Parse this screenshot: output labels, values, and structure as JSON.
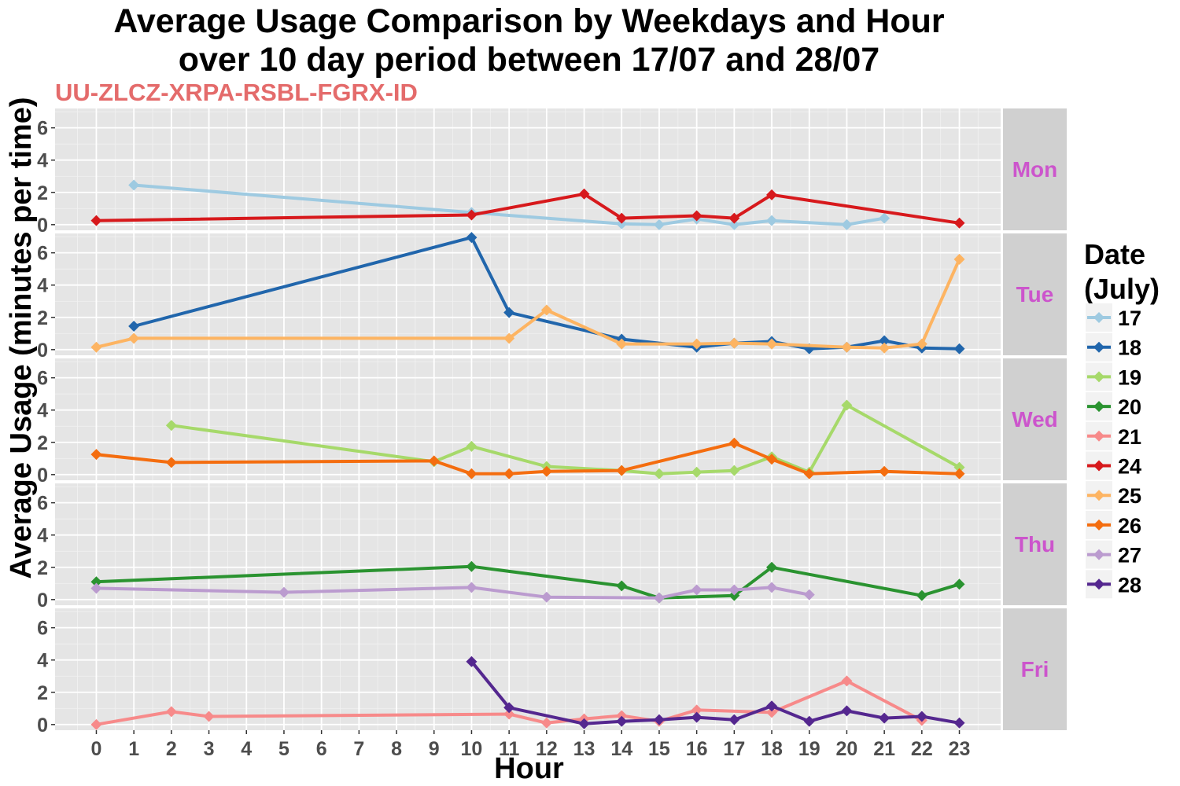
{
  "chart_data": {
    "type": "line",
    "title": "Average Usage Comparison by Weekdays and Hour",
    "title_line2": "over 10 day period between 17/07 and 28/07",
    "subtitle": "UU-ZLCZ-XRPA-RSBL-FGRX-ID",
    "xlabel": "Hour",
    "ylabel": "Average Usage (minutes per time)",
    "x_ticks": [
      0,
      1,
      2,
      3,
      4,
      5,
      6,
      7,
      8,
      9,
      10,
      11,
      12,
      13,
      14,
      15,
      16,
      17,
      18,
      19,
      20,
      21,
      22,
      23
    ],
    "y_ticks": [
      0,
      2,
      4,
      6
    ],
    "xlim": [
      -1.1,
      24.1
    ],
    "ylim": [
      -0.35,
      7.2
    ],
    "grid": true,
    "legend": {
      "title_line1": "Date",
      "title_line2": "(July)",
      "position": "right"
    },
    "panels": [
      {
        "label": "Mon",
        "series": [
          {
            "name": "17",
            "color": "#9ecae1",
            "x": [
              1,
              10,
              14,
              15,
              16,
              17,
              18,
              20,
              21
            ],
            "y": [
              2.45,
              0.75,
              0.05,
              0.0,
              0.35,
              0.0,
              0.25,
              0.0,
              0.4
            ]
          },
          {
            "name": "24",
            "color": "#d7191c",
            "x": [
              0,
              10,
              13,
              14,
              16,
              17,
              18,
              23
            ],
            "y": [
              0.25,
              0.6,
              1.9,
              0.4,
              0.55,
              0.4,
              1.85,
              0.1
            ]
          }
        ]
      },
      {
        "label": "Tue",
        "series": [
          {
            "name": "18",
            "color": "#2166ac",
            "x": [
              1,
              10,
              11,
              14,
              16,
              17,
              18,
              19,
              20,
              21,
              22,
              23
            ],
            "y": [
              1.45,
              6.95,
              2.3,
              0.65,
              0.15,
              0.4,
              0.5,
              0.05,
              0.15,
              0.55,
              0.1,
              0.05
            ]
          },
          {
            "name": "25",
            "color": "#fdb462",
            "x": [
              0,
              1,
              11,
              12,
              14,
              16,
              17,
              18,
              20,
              21,
              22,
              23
            ],
            "y": [
              0.15,
              0.7,
              0.7,
              2.45,
              0.35,
              0.35,
              0.4,
              0.35,
              0.15,
              0.1,
              0.35,
              5.6
            ]
          }
        ]
      },
      {
        "label": "Wed",
        "series": [
          {
            "name": "19",
            "color": "#a6d96a",
            "x": [
              2,
              9,
              10,
              12,
              14,
              15,
              16,
              17,
              18,
              19,
              20,
              23
            ],
            "y": [
              3.05,
              0.8,
              1.75,
              0.5,
              0.25,
              0.05,
              0.15,
              0.25,
              1.1,
              0.15,
              4.3,
              0.45
            ]
          },
          {
            "name": "26",
            "color": "#f46d0f",
            "x": [
              0,
              2,
              9,
              10,
              11,
              12,
              14,
              17,
              18,
              19,
              21,
              23
            ],
            "y": [
              1.25,
              0.75,
              0.85,
              0.05,
              0.05,
              0.2,
              0.25,
              1.95,
              0.95,
              0.05,
              0.2,
              0.05
            ]
          }
        ]
      },
      {
        "label": "Thu",
        "series": [
          {
            "name": "20",
            "color": "#2a9330",
            "x": [
              0,
              10,
              14,
              15,
              17,
              18,
              22,
              23
            ],
            "y": [
              1.1,
              2.05,
              0.85,
              0.1,
              0.25,
              2.0,
              0.25,
              0.95
            ]
          },
          {
            "name": "27",
            "color": "#bb9bcf",
            "x": [
              0,
              5,
              10,
              12,
              15,
              16,
              17,
              18,
              19
            ],
            "y": [
              0.7,
              0.45,
              0.75,
              0.15,
              0.1,
              0.6,
              0.6,
              0.75,
              0.3
            ]
          }
        ]
      },
      {
        "label": "Fri",
        "series": [
          {
            "name": "21",
            "color": "#f78a8a",
            "x": [
              0,
              2,
              3,
              11,
              12,
              13,
              14,
              15,
              16,
              18,
              20,
              22
            ],
            "y": [
              0.0,
              0.8,
              0.5,
              0.65,
              0.1,
              0.35,
              0.55,
              0.2,
              0.9,
              0.75,
              2.7,
              0.25
            ]
          },
          {
            "name": "28",
            "color": "#54278f",
            "x": [
              10,
              11,
              13,
              14,
              15,
              16,
              17,
              18,
              19,
              20,
              21,
              22,
              23
            ],
            "y": [
              3.9,
              1.05,
              0.05,
              0.2,
              0.3,
              0.45,
              0.3,
              1.15,
              0.2,
              0.85,
              0.4,
              0.5,
              0.1
            ]
          }
        ]
      }
    ],
    "legend_entries": [
      {
        "name": "17",
        "color": "#9ecae1"
      },
      {
        "name": "18",
        "color": "#2166ac"
      },
      {
        "name": "19",
        "color": "#a6d96a"
      },
      {
        "name": "20",
        "color": "#2a9330"
      },
      {
        "name": "21",
        "color": "#f78a8a"
      },
      {
        "name": "24",
        "color": "#d7191c"
      },
      {
        "name": "25",
        "color": "#fdb462"
      },
      {
        "name": "26",
        "color": "#f46d0f"
      },
      {
        "name": "27",
        "color": "#bb9bcf"
      },
      {
        "name": "28",
        "color": "#54278f"
      }
    ]
  }
}
